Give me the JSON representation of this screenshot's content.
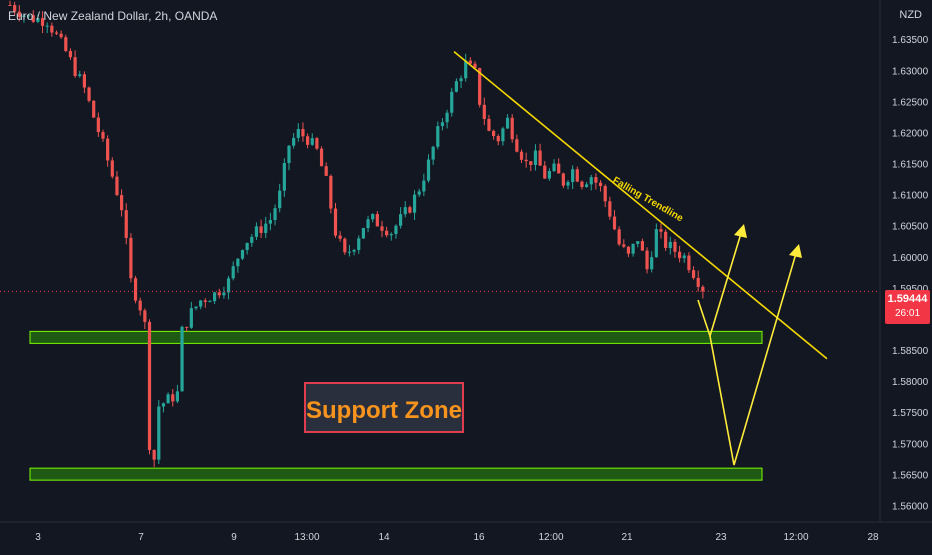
{
  "title": "Euro / New Zealand Dollar, 2h, OANDA",
  "currency": "NZD",
  "current_price": "1.59444",
  "countdown": "26:01",
  "colors": {
    "background": "#131722",
    "bull": "#26a69a",
    "bear": "#ef5350",
    "zone_fill": "#1e5a14",
    "zone_stroke": "#7cfc00",
    "trendline": "#f5d800",
    "arrow": "#ffeb3b",
    "label_text": "#f7941d",
    "label_bg": "#2a2f3e",
    "label_border": "#e03e4f",
    "price_badge": "#f23645",
    "axis_text": "#d1d4dc"
  },
  "chart_data": {
    "type": "candlestick",
    "ylim": [
      1.5575,
      1.6413
    ],
    "y_ticks": [
      "1.63500",
      "1.63000",
      "1.62500",
      "1.62000",
      "1.61500",
      "1.61000",
      "1.60500",
      "1.60000",
      "1.59500",
      "1.59000",
      "1.58500",
      "1.58000",
      "1.57500",
      "1.57000",
      "1.56500",
      "1.56000"
    ],
    "x_ticks": [
      "3",
      "7",
      "9",
      "13:00",
      "14",
      "16",
      "12:00",
      "21",
      "23",
      "12:00",
      "28"
    ],
    "series": [
      {
        "name": "price",
        "path": [
          [
            0,
            1.6405
          ],
          [
            4,
            1.6385
          ],
          [
            8,
            1.638
          ],
          [
            12,
            1.633
          ],
          [
            16,
            1.627
          ],
          [
            20,
            1.618
          ],
          [
            24,
            1.608
          ],
          [
            26,
            1.596
          ],
          [
            28,
            1.592
          ],
          [
            29,
            1.589
          ],
          [
            30,
            1.57
          ],
          [
            31,
            1.5675
          ],
          [
            32,
            1.576
          ],
          [
            34,
            1.577
          ],
          [
            36,
            1.578
          ],
          [
            37,
            1.588
          ],
          [
            39,
            1.591
          ],
          [
            41,
            1.593
          ],
          [
            44,
            1.594
          ],
          [
            47,
            1.596
          ],
          [
            50,
            1.602
          ],
          [
            53,
            1.604
          ],
          [
            56,
            1.606
          ],
          [
            58,
            1.61
          ],
          [
            60,
            1.618
          ],
          [
            62,
            1.62
          ],
          [
            64,
            1.619
          ],
          [
            66,
            1.617
          ],
          [
            68,
            1.612
          ],
          [
            70,
            1.604
          ],
          [
            72,
            1.6
          ],
          [
            74,
            1.602
          ],
          [
            76,
            1.605
          ],
          [
            78,
            1.606
          ],
          [
            80,
            1.605
          ],
          [
            82,
            1.604
          ],
          [
            84,
            1.606
          ],
          [
            86,
            1.608
          ],
          [
            88,
            1.611
          ],
          [
            90,
            1.615
          ],
          [
            92,
            1.62
          ],
          [
            94,
            1.624
          ],
          [
            96,
            1.628
          ],
          [
            98,
            1.631
          ],
          [
            100,
            1.6295
          ],
          [
            101,
            1.625
          ],
          [
            103,
            1.62
          ],
          [
            105,
            1.619
          ],
          [
            107,
            1.622
          ],
          [
            109,
            1.618
          ],
          [
            111,
            1.615
          ],
          [
            113,
            1.616
          ],
          [
            115,
            1.613
          ],
          [
            117,
            1.614
          ],
          [
            119,
            1.612
          ],
          [
            121,
            1.614
          ],
          [
            123,
            1.612
          ],
          [
            125,
            1.613
          ],
          [
            127,
            1.611
          ],
          [
            129,
            1.607
          ],
          [
            131,
            1.602
          ],
          [
            133,
            1.6
          ],
          [
            135,
            1.603
          ],
          [
            137,
            1.598
          ],
          [
            139,
            1.604
          ],
          [
            141,
            1.602
          ],
          [
            143,
            1.601
          ],
          [
            145,
            1.6
          ],
          [
            147,
            1.5975
          ],
          [
            149,
            1.595
          ]
        ]
      }
    ],
    "annotations": {
      "support_label": "Support Zone",
      "trendline_label": "Falling Trendline",
      "zones": [
        {
          "name": "upper-support-zone",
          "low": 1.5866,
          "high": 1.588
        },
        {
          "name": "lower-support-zone",
          "low": 1.5645,
          "high": 1.566
        }
      ],
      "trendline": [
        [
          1.633
        ],
        [
          1.5836
        ]
      ],
      "current_price_line": 1.59444
    }
  }
}
